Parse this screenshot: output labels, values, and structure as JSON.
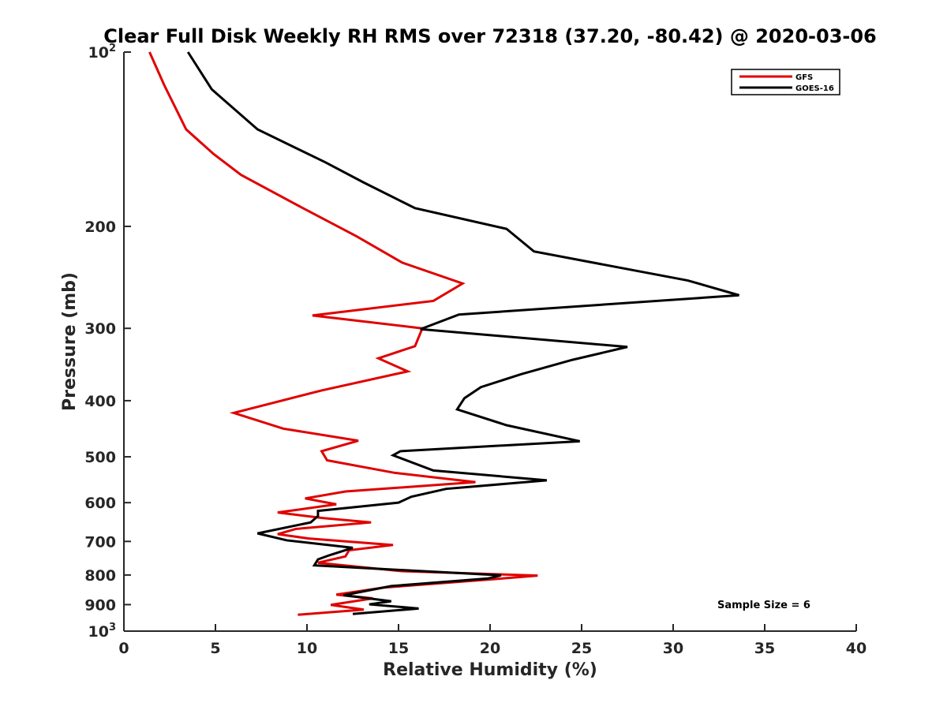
{
  "chart_data": {
    "type": "line",
    "title": "Clear Full Disk Weekly RH RMS over 72318 (37.20, -80.42) @ 2020-03-06",
    "xlabel": "Relative Humidity (%)",
    "ylabel": "Pressure (mb)",
    "xlim": [
      0,
      40
    ],
    "ylim": [
      100,
      1000
    ],
    "y_scale": "log",
    "y_reversed": true,
    "x_ticks": [
      {
        "value": 0,
        "label": "0"
      },
      {
        "value": 5,
        "label": "5"
      },
      {
        "value": 10,
        "label": "10"
      },
      {
        "value": 15,
        "label": "15"
      },
      {
        "value": 20,
        "label": "20"
      },
      {
        "value": 25,
        "label": "25"
      },
      {
        "value": 30,
        "label": "30"
      },
      {
        "value": 35,
        "label": "35"
      },
      {
        "value": 40,
        "label": "40"
      }
    ],
    "y_ticks": [
      {
        "value": 100,
        "base": "10",
        "exp": "2"
      },
      {
        "value": 200,
        "label": "200"
      },
      {
        "value": 300,
        "label": "300"
      },
      {
        "value": 400,
        "label": "400"
      },
      {
        "value": 500,
        "label": "500"
      },
      {
        "value": 600,
        "label": "600"
      },
      {
        "value": 700,
        "label": "700"
      },
      {
        "value": 800,
        "label": "800"
      },
      {
        "value": 900,
        "label": "900"
      },
      {
        "value": 1000,
        "base": "10",
        "exp": "3"
      }
    ],
    "grid": false,
    "legend_position": "top-right",
    "annotation": "Sample Size = 6",
    "series": [
      {
        "name": "GFS",
        "color": "#e00000",
        "points": [
          [
            1.4,
            100
          ],
          [
            2.2,
            114
          ],
          [
            3.4,
            136
          ],
          [
            4.9,
            150
          ],
          [
            6.4,
            163
          ],
          [
            9.5,
            184
          ],
          [
            12.7,
            208
          ],
          [
            15.2,
            231
          ],
          [
            18.5,
            251
          ],
          [
            16.9,
            269
          ],
          [
            10.3,
            285
          ],
          [
            16.3,
            300
          ],
          [
            15.9,
            322
          ],
          [
            13.9,
            338
          ],
          [
            15.5,
            356
          ],
          [
            10.8,
            384
          ],
          [
            6.0,
            420
          ],
          [
            8.7,
            447
          ],
          [
            12.8,
            469
          ],
          [
            10.8,
            489
          ],
          [
            11.1,
            507
          ],
          [
            14.8,
            533
          ],
          [
            19.2,
            553
          ],
          [
            12.1,
            574
          ],
          [
            9.9,
            590
          ],
          [
            11.6,
            604
          ],
          [
            8.4,
            624
          ],
          [
            10.9,
            638
          ],
          [
            13.5,
            649
          ],
          [
            9.4,
            666
          ],
          [
            8.4,
            680
          ],
          [
            10.1,
            692
          ],
          [
            14.7,
            710
          ],
          [
            12.3,
            725
          ],
          [
            12.1,
            743
          ],
          [
            10.6,
            762
          ],
          [
            15.2,
            788
          ],
          [
            22.6,
            802
          ],
          [
            20.5,
            812
          ],
          [
            14.2,
            841
          ],
          [
            11.6,
            865
          ],
          [
            13.6,
            878
          ],
          [
            11.3,
            901
          ],
          [
            13.1,
            918
          ],
          [
            9.5,
            937
          ]
        ]
      },
      {
        "name": "GOES-16",
        "color": "#000000",
        "points": [
          [
            3.5,
            100
          ],
          [
            4.8,
            116
          ],
          [
            7.3,
            136
          ],
          [
            11.0,
            155
          ],
          [
            13.1,
            168
          ],
          [
            15.9,
            186
          ],
          [
            20.9,
            202
          ],
          [
            22.4,
            221
          ],
          [
            30.8,
            248
          ],
          [
            33.6,
            263
          ],
          [
            18.3,
            284
          ],
          [
            16.2,
            301
          ],
          [
            27.5,
            323
          ],
          [
            24.5,
            340
          ],
          [
            21.7,
            360
          ],
          [
            19.5,
            379
          ],
          [
            18.6,
            396
          ],
          [
            18.2,
            414
          ],
          [
            20.9,
            441
          ],
          [
            24.9,
            470
          ],
          [
            15.1,
            489
          ],
          [
            14.7,
            497
          ],
          [
            16.9,
            528
          ],
          [
            23.1,
            549
          ],
          [
            17.6,
            568
          ],
          [
            15.7,
            586
          ],
          [
            15.0,
            600
          ],
          [
            10.6,
            620
          ],
          [
            10.6,
            633
          ],
          [
            10.2,
            649
          ],
          [
            7.3,
            678
          ],
          [
            8.9,
            697
          ],
          [
            12.5,
            718
          ],
          [
            11.2,
            740
          ],
          [
            10.6,
            752
          ],
          [
            10.4,
            770
          ],
          [
            20.6,
            801
          ],
          [
            19.9,
            811
          ],
          [
            14.6,
            836
          ],
          [
            12.0,
            867
          ],
          [
            14.6,
            888
          ],
          [
            13.4,
            899
          ],
          [
            16.1,
            914
          ],
          [
            12.5,
            934
          ]
        ]
      }
    ]
  }
}
